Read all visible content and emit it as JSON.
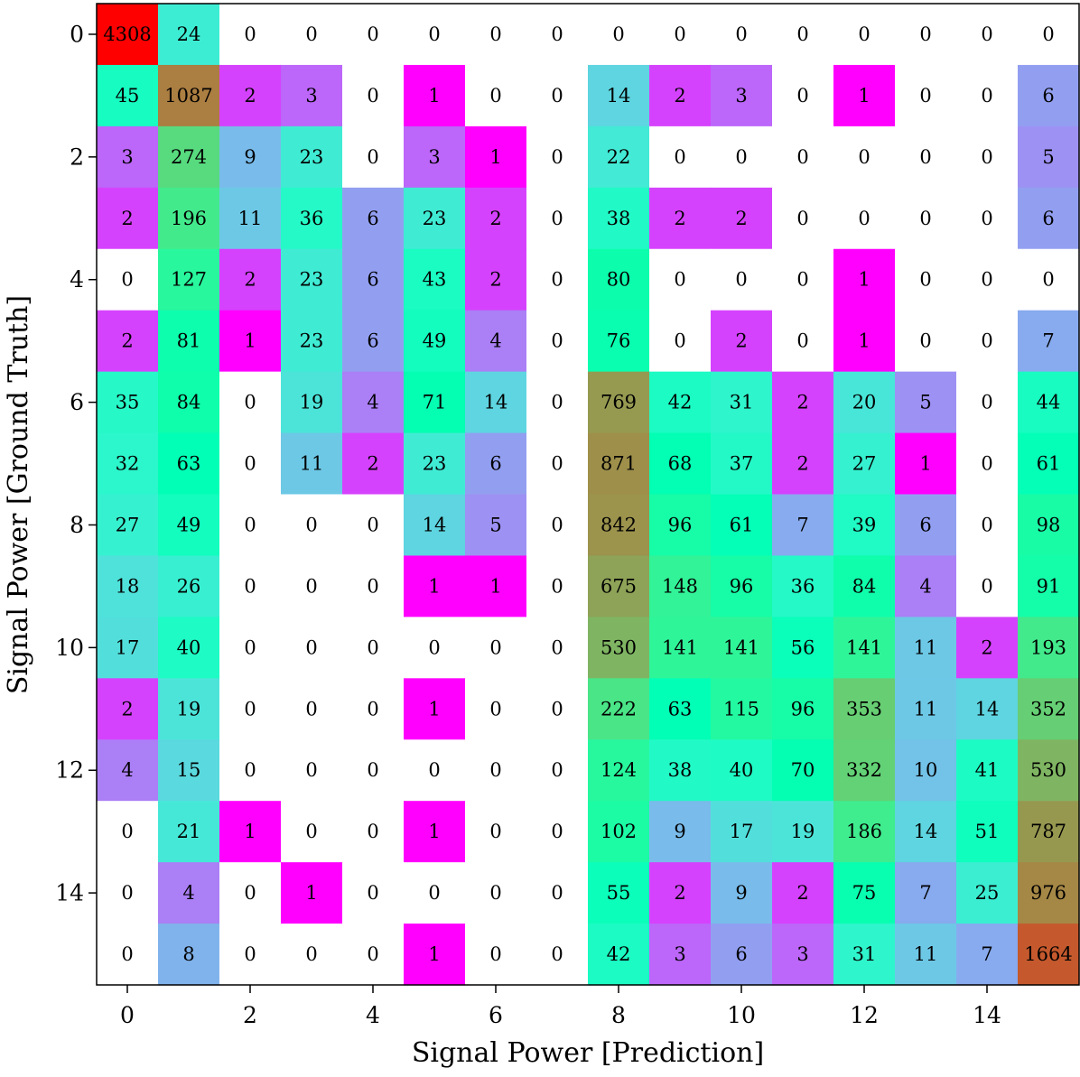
{
  "chart_data": {
    "type": "heatmap",
    "xlabel": "Signal Power [Prediction]",
    "ylabel": "Signal Power [Ground Truth]",
    "x_categories": [
      0,
      1,
      2,
      3,
      4,
      5,
      6,
      7,
      8,
      9,
      10,
      11,
      12,
      13,
      14,
      15
    ],
    "y_categories": [
      0,
      1,
      2,
      3,
      4,
      5,
      6,
      7,
      8,
      9,
      10,
      11,
      12,
      13,
      14,
      15
    ],
    "x_ticks": [
      0,
      2,
      4,
      6,
      8,
      10,
      12,
      14
    ],
    "y_ticks": [
      0,
      2,
      4,
      6,
      8,
      10,
      12,
      14
    ],
    "colormap": "rainbow (log scale), zero cells white",
    "zero_color": "#ffffff",
    "matrix": [
      [
        4308,
        24,
        0,
        0,
        0,
        0,
        0,
        0,
        0,
        0,
        0,
        0,
        0,
        0,
        0,
        0
      ],
      [
        45,
        1087,
        2,
        3,
        0,
        1,
        0,
        0,
        14,
        2,
        3,
        0,
        1,
        0,
        0,
        6
      ],
      [
        3,
        274,
        9,
        23,
        0,
        3,
        1,
        0,
        22,
        0,
        0,
        0,
        0,
        0,
        0,
        5
      ],
      [
        2,
        196,
        11,
        36,
        6,
        23,
        2,
        0,
        38,
        2,
        2,
        0,
        0,
        0,
        0,
        6
      ],
      [
        0,
        127,
        2,
        23,
        6,
        43,
        2,
        0,
        80,
        0,
        0,
        0,
        1,
        0,
        0,
        0
      ],
      [
        2,
        81,
        1,
        23,
        6,
        49,
        4,
        0,
        76,
        0,
        2,
        0,
        1,
        0,
        0,
        7
      ],
      [
        35,
        84,
        0,
        19,
        4,
        71,
        14,
        0,
        769,
        42,
        31,
        2,
        20,
        5,
        0,
        44
      ],
      [
        32,
        63,
        0,
        11,
        2,
        23,
        6,
        0,
        871,
        68,
        37,
        2,
        27,
        1,
        0,
        61
      ],
      [
        27,
        49,
        0,
        0,
        0,
        14,
        5,
        0,
        842,
        96,
        61,
        7,
        39,
        6,
        0,
        98
      ],
      [
        18,
        26,
        0,
        0,
        0,
        1,
        1,
        0,
        675,
        148,
        96,
        36,
        84,
        4,
        0,
        91
      ],
      [
        17,
        40,
        0,
        0,
        0,
        0,
        0,
        0,
        530,
        141,
        141,
        56,
        141,
        11,
        2,
        193
      ],
      [
        2,
        19,
        0,
        0,
        0,
        1,
        0,
        0,
        222,
        63,
        115,
        96,
        353,
        11,
        14,
        352
      ],
      [
        4,
        15,
        0,
        0,
        0,
        0,
        0,
        0,
        124,
        38,
        40,
        70,
        332,
        10,
        41,
        530
      ],
      [
        0,
        21,
        1,
        0,
        0,
        1,
        0,
        0,
        102,
        9,
        17,
        19,
        186,
        14,
        51,
        787
      ],
      [
        0,
        4,
        0,
        1,
        0,
        0,
        0,
        0,
        55,
        2,
        9,
        2,
        75,
        7,
        25,
        976
      ],
      [
        0,
        8,
        0,
        0,
        0,
        1,
        0,
        0,
        42,
        3,
        6,
        3,
        31,
        11,
        7,
        1664
      ]
    ]
  }
}
